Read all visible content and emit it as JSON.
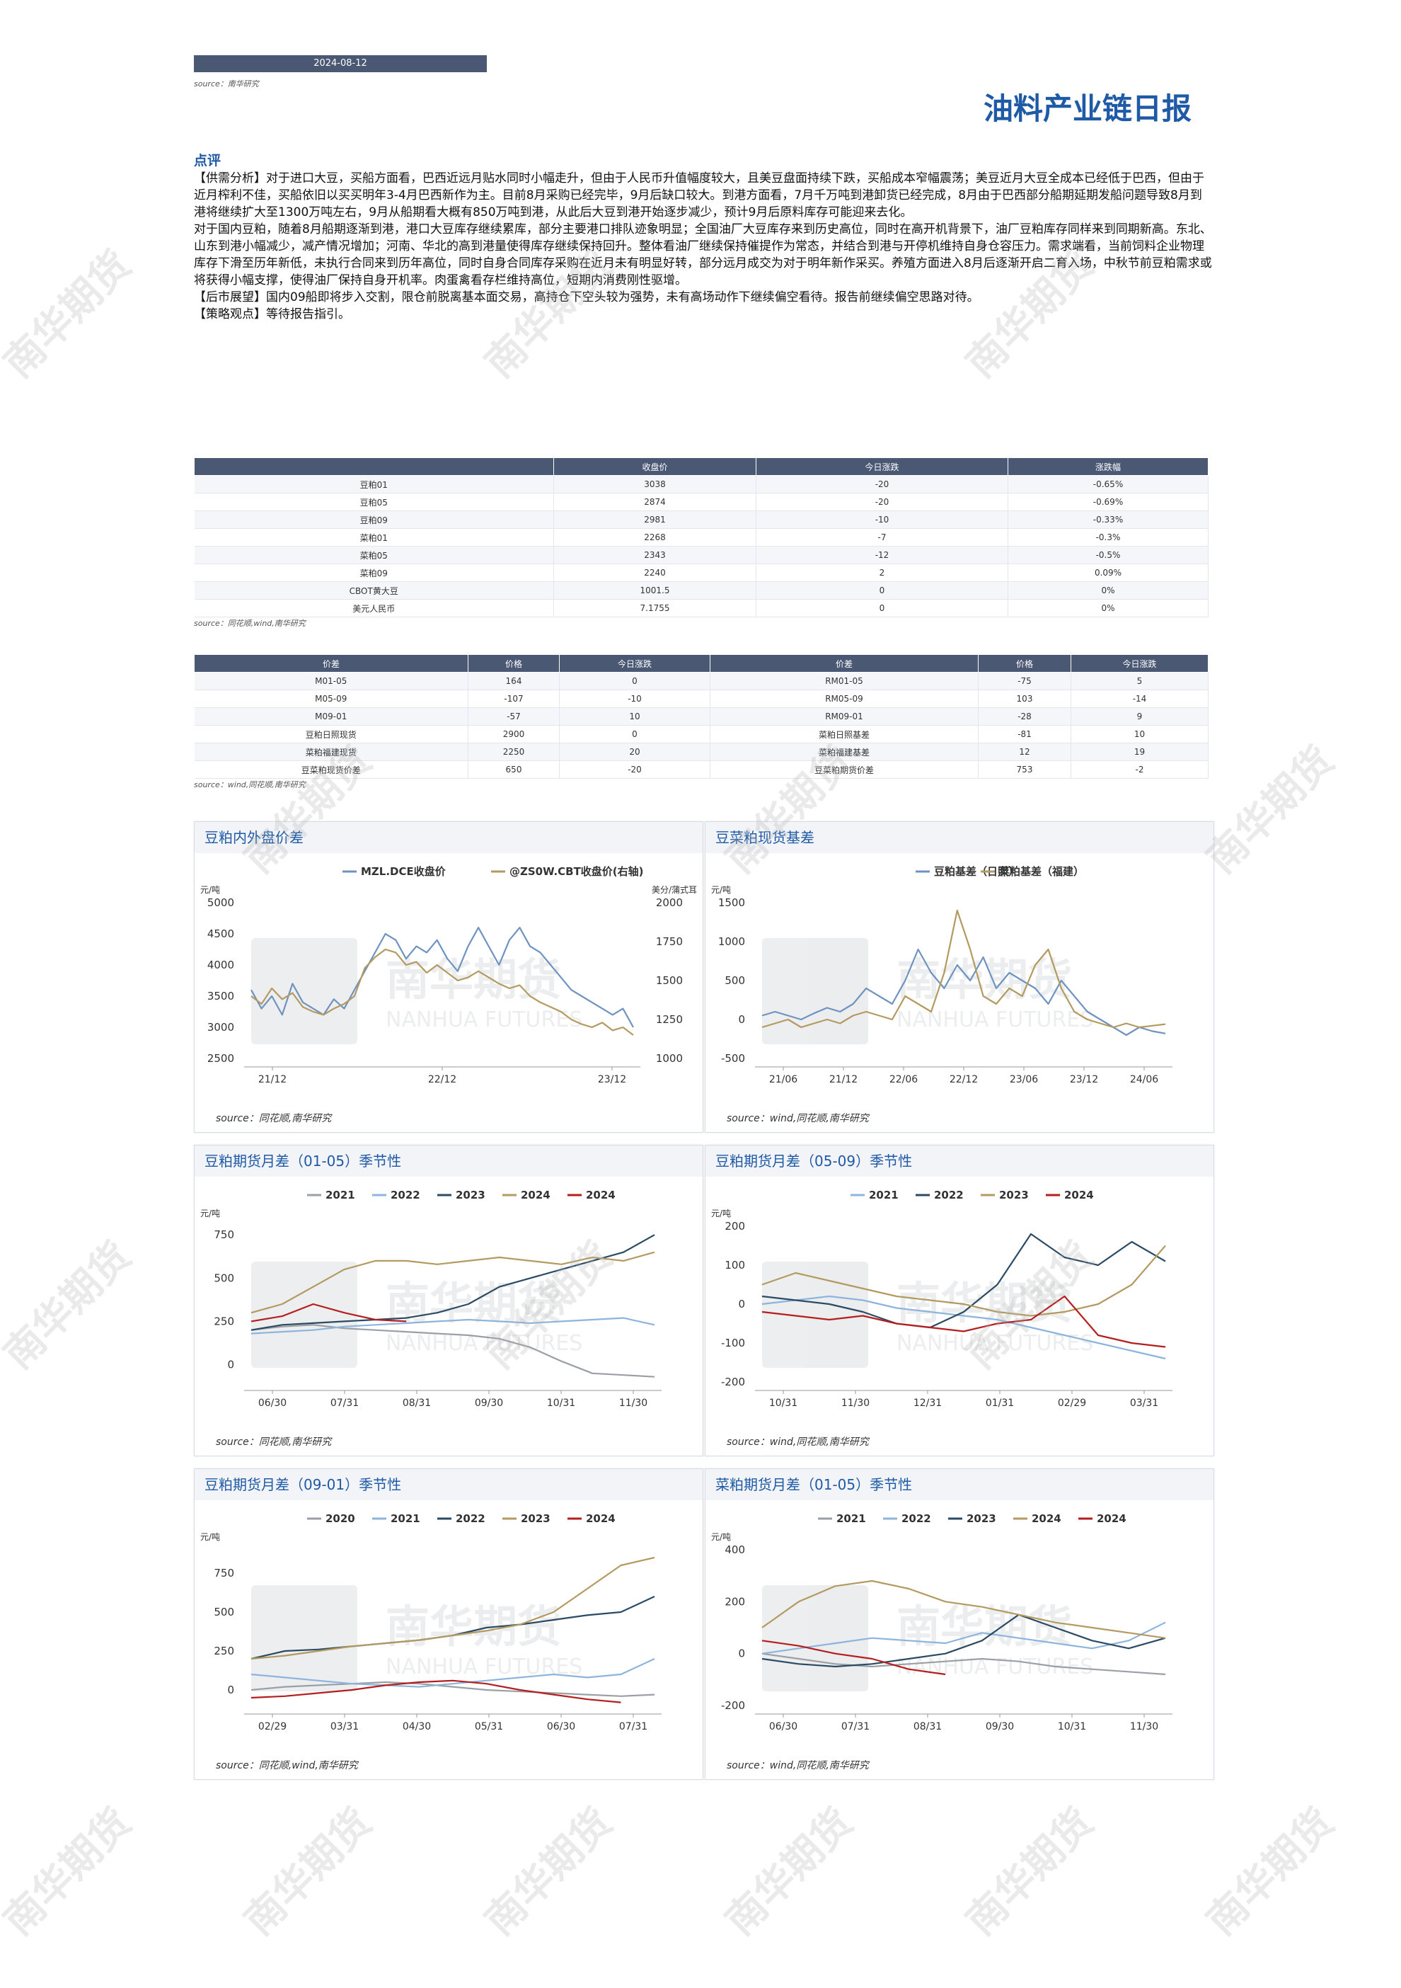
{
  "header": {
    "date": "2024-08-12",
    "source": "source：南华研究",
    "title": "油料产业链日报"
  },
  "commentary": {
    "heading": "点评",
    "paragraphs": [
      "【供需分析】对于进口大豆，买船方面看，巴西近远月贴水同时小幅走升，但由于人民币升值幅度较大，且美豆盘面持续下跌，买船成本窄幅震荡；美豆近月大豆全成本已经低于巴西，但由于近月榨利不佳，买船依旧以买买明年3-4月巴西新作为主。目前8月采购已经完毕，9月后缺口较大。到港方面看，7月千万吨到港卸货已经完成，8月由于巴西部分船期延期发船问题导致8月到港将继续扩大至1300万吨左右，9月从船期看大概有850万吨到港，从此后大豆到港开始逐步减少，预计9月后原料库存可能迎来去化。",
      "对于国内豆粕，随着8月船期逐渐到港，港口大豆库存继续累库，部分主要港口排队迹象明显；全国油厂大豆库存来到历史高位，同时在高开机背景下，油厂豆粕库存同样来到同期新高。东北、山东到港小幅减少，减产情况增加；河南、华北的高到港量使得库存继续保持回升。整体看油厂继续保持催提作为常态，并结合到港与开停机维持自身仓容压力。需求端看，当前饲料企业物理库存下滑至历年新低，未执行合同来到历年高位，同时自身合同库存采购在近月未有明显好转，部分远月成交为对于明年新作采买。养殖方面进入8月后逐渐开启二育入场，中秋节前豆粕需求或将获得小幅支撑，使得油厂保持自身开机率。肉蛋禽看存栏维持高位，短期内消费刚性驱增。",
      "【后市展望】国内09船即将步入交割，限仓前脱离基本面交易，高持仓下空头较为强势，未有高场动作下继续偏空看待。报告前继续偏空思路对待。",
      "【策略观点】等待报告指引。"
    ]
  },
  "table1": {
    "headers": [
      "",
      "收盘价",
      "今日涨跌",
      "涨跌幅"
    ],
    "rows": [
      [
        "豆粕01",
        "3038",
        "-20",
        "-0.65%"
      ],
      [
        "豆粕05",
        "2874",
        "-20",
        "-0.69%"
      ],
      [
        "豆粕09",
        "2981",
        "-10",
        "-0.33%"
      ],
      [
        "菜粕01",
        "2268",
        "-7",
        "-0.3%"
      ],
      [
        "菜粕05",
        "2343",
        "-12",
        "-0.5%"
      ],
      [
        "菜粕09",
        "2240",
        "2",
        "0.09%"
      ],
      [
        "CBOT黄大豆",
        "1001.5",
        "0",
        "0%"
      ],
      [
        "美元人民币",
        "7.1755",
        "0",
        "0%"
      ]
    ],
    "source": "source：同花顺,wind,南华研究"
  },
  "table2": {
    "headers": [
      "价差",
      "价格",
      "今日涨跌",
      "价差",
      "价格",
      "今日涨跌"
    ],
    "rows": [
      [
        "M01-05",
        "164",
        "0",
        "RM01-05",
        "-75",
        "5"
      ],
      [
        "M05-09",
        "-107",
        "-10",
        "RM05-09",
        "103",
        "-14"
      ],
      [
        "M09-01",
        "-57",
        "10",
        "RM09-01",
        "-28",
        "9"
      ],
      [
        "豆粕日照现货",
        "2900",
        "0",
        "菜粕日照基差",
        "-81",
        "10"
      ],
      [
        "菜粕福建现货",
        "2250",
        "20",
        "菜粕福建基差",
        "12",
        "19"
      ],
      [
        "豆菜粕现货价差",
        "650",
        "-20",
        "豆菜粕期货价差",
        "753",
        "-2"
      ]
    ],
    "source": "source：wind,同花顺,南华研究"
  },
  "watermark": {
    "text": "南华期货",
    "logo_cn": "南华期货",
    "logo_en": "NANHUA FUTURES"
  },
  "colors": {
    "blue_gray": "#6f93c0",
    "navy": "#2b4a63",
    "gold": "#b39a60",
    "red": "#b51e1e",
    "gray": "#9aa0a6",
    "light_blue": "#8db4dd"
  },
  "charts": [
    {
      "title": "豆粕内外盘价差",
      "source": "source：同花顺,南华研究",
      "chart_data": {
        "type": "line",
        "unit_left": "元/吨",
        "unit_right": "美分/蒲式耳",
        "left_ticks": [
          "5000",
          "4500",
          "4000",
          "3500",
          "3000",
          "2500"
        ],
        "right_ticks": [
          "2000",
          "1750",
          "1500",
          "1250",
          "1000"
        ],
        "x_ticks": [
          "21/12",
          "22/12",
          "23/12"
        ],
        "ylim": [
          2500,
          5000
        ],
        "ylim_right": [
          1000,
          2000
        ],
        "series": [
          {
            "name": "MZL.DCE收盘价",
            "color": "#6f93c0",
            "axis": "left",
            "values": [
              3600,
              3300,
              3500,
              3200,
              3700,
              3400,
              3300,
              3200,
              3450,
              3300,
              3600,
              3900,
              4200,
              4500,
              4400,
              4100,
              4300,
              4200,
              4400,
              4100,
              3900,
              4300,
              4600,
              4300,
              4000,
              4400,
              4600,
              4300,
              4200,
              4000,
              3800,
              3600,
              3500,
              3400,
              3300,
              3200,
              3300,
              3000
            ]
          },
          {
            "name": "@ZS0W.CBT收盘价(右轴)",
            "color": "#b39a60",
            "axis": "right",
            "values": [
              1400,
              1350,
              1450,
              1380,
              1420,
              1330,
              1300,
              1280,
              1320,
              1350,
              1400,
              1580,
              1650,
              1700,
              1680,
              1600,
              1620,
              1550,
              1600,
              1550,
              1500,
              1520,
              1560,
              1520,
              1480,
              1450,
              1470,
              1400,
              1360,
              1330,
              1300,
              1250,
              1220,
              1200,
              1230,
              1180,
              1200,
              1150
            ]
          }
        ]
      }
    },
    {
      "title": "豆菜粕现货基差",
      "source": "source：wind,同花顺,南华研究",
      "chart_data": {
        "type": "line",
        "unit_left": "元/吨",
        "left_ticks": [
          "1500",
          "1000",
          "500",
          "0",
          "-500"
        ],
        "x_ticks": [
          "21/06",
          "21/12",
          "22/06",
          "22/12",
          "23/06",
          "23/12",
          "24/06"
        ],
        "ylim": [
          -500,
          1500
        ],
        "series": [
          {
            "name": "豆粕基差（日照）",
            "color": "#6f93c0",
            "values": [
              50,
              100,
              50,
              0,
              80,
              150,
              100,
              200,
              400,
              300,
              200,
              500,
              900,
              600,
              400,
              700,
              500,
              800,
              400,
              600,
              500,
              400,
              200,
              500,
              300,
              100,
              0,
              -100,
              -200,
              -100,
              -150,
              -180
            ]
          },
          {
            "name": "菜粕基差（福建）",
            "color": "#b39a60",
            "values": [
              -100,
              -50,
              0,
              -100,
              -50,
              0,
              -50,
              50,
              100,
              50,
              0,
              300,
              200,
              100,
              600,
              1400,
              900,
              300,
              200,
              400,
              300,
              700,
              900,
              400,
              100,
              0,
              -50,
              -100,
              -50,
              -100,
              -80,
              -60
            ]
          }
        ]
      }
    },
    {
      "title": "豆粕期货月差（01-05）季节性",
      "source": "source：同花顺,南华研究",
      "chart_data": {
        "type": "line",
        "unit_left": "元/吨",
        "left_ticks": [
          "750",
          "500",
          "250",
          "0"
        ],
        "x_ticks": [
          "06/30",
          "07/31",
          "08/31",
          "09/30",
          "10/31",
          "11/30"
        ],
        "ylim": [
          -100,
          800
        ],
        "series": [
          {
            "name": "2021",
            "color": "#9aa0a6",
            "values": [
              200,
              220,
              230,
              210,
              200,
              190,
              180,
              170,
              150,
              100,
              20,
              -50,
              -60,
              -70
            ]
          },
          {
            "name": "2022",
            "color": "#8db4dd",
            "values": [
              180,
              190,
              200,
              220,
              230,
              240,
              250,
              260,
              250,
              240,
              250,
              260,
              270,
              230
            ]
          },
          {
            "name": "2023",
            "color": "#2b4a63",
            "values": [
              200,
              230,
              240,
              250,
              260,
              270,
              300,
              350,
              450,
              500,
              550,
              600,
              650,
              750
            ]
          },
          {
            "name": "2024",
            "color": "#b39a60",
            "values": [
              300,
              350,
              450,
              550,
              600,
              600,
              580,
              600,
              620,
              600,
              580,
              620,
              600,
              650
            ]
          },
          {
            "name": "2024",
            "color": "#b51e1e",
            "values": [
              250,
              280,
              350,
              300,
              260,
              250
            ]
          }
        ]
      }
    },
    {
      "title": "豆粕期货月差（05-09）季节性",
      "source": "source：wind,同花顺,南华研究",
      "chart_data": {
        "type": "line",
        "unit_left": "元/吨",
        "left_ticks": [
          "200",
          "100",
          "0",
          "-100",
          "-200"
        ],
        "x_ticks": [
          "10/31",
          "11/30",
          "12/31",
          "01/31",
          "02/29",
          "03/31"
        ],
        "ylim": [
          -200,
          200
        ],
        "series": [
          {
            "name": "2021",
            "color": "#8db4dd",
            "values": [
              0,
              10,
              20,
              10,
              -10,
              -20,
              -30,
              -40,
              -60,
              -80,
              -100,
              -120,
              -140
            ]
          },
          {
            "name": "2022",
            "color": "#2b4a63",
            "values": [
              20,
              10,
              0,
              -20,
              -50,
              -60,
              -20,
              50,
              180,
              120,
              100,
              160,
              110
            ]
          },
          {
            "name": "2023",
            "color": "#b39a60",
            "values": [
              50,
              80,
              60,
              40,
              20,
              10,
              0,
              -20,
              -30,
              -20,
              0,
              50,
              150
            ]
          },
          {
            "name": "2024",
            "color": "#b51e1e",
            "values": [
              -20,
              -30,
              -40,
              -30,
              -50,
              -60,
              -70,
              -50,
              -40,
              20,
              -80,
              -100,
              -110
            ]
          }
        ]
      }
    },
    {
      "title": "豆粕期货月差（09-01）季节性",
      "source": "source：同花顺,wind,南华研究",
      "chart_data": {
        "type": "line",
        "unit_left": "元/吨",
        "left_ticks": [
          "750",
          "500",
          "250",
          "0"
        ],
        "x_ticks": [
          "02/29",
          "03/31",
          "04/30",
          "05/31",
          "06/30",
          "07/31"
        ],
        "ylim": [
          -100,
          900
        ],
        "series": [
          {
            "name": "2020",
            "color": "#9aa0a6",
            "values": [
              0,
              20,
              30,
              40,
              50,
              40,
              20,
              0,
              -10,
              -20,
              -30,
              -40,
              -30
            ]
          },
          {
            "name": "2021",
            "color": "#8db4dd",
            "values": [
              100,
              80,
              60,
              40,
              30,
              20,
              40,
              60,
              80,
              100,
              80,
              100,
              200
            ]
          },
          {
            "name": "2022",
            "color": "#2b4a63",
            "values": [
              200,
              250,
              260,
              280,
              300,
              320,
              350,
              400,
              420,
              450,
              480,
              500,
              600
            ]
          },
          {
            "name": "2023",
            "color": "#b39a60",
            "values": [
              200,
              220,
              250,
              280,
              300,
              320,
              350,
              380,
              420,
              500,
              650,
              800,
              850
            ]
          },
          {
            "name": "2024",
            "color": "#b51e1e",
            "values": [
              -50,
              -40,
              -20,
              0,
              30,
              50,
              60,
              40,
              0,
              -30,
              -60,
              -80
            ]
          }
        ]
      }
    },
    {
      "title": "菜粕期货月差（01-05）季节性",
      "source": "source：wind,同花顺,南华研究",
      "chart_data": {
        "type": "line",
        "unit_left": "元/吨",
        "left_ticks": [
          "400",
          "200",
          "0",
          "-200"
        ],
        "x_ticks": [
          "06/30",
          "07/31",
          "08/31",
          "09/30",
          "10/31",
          "11/30"
        ],
        "ylim": [
          -200,
          400
        ],
        "series": [
          {
            "name": "2021",
            "color": "#9aa0a6",
            "values": [
              0,
              -20,
              -40,
              -50,
              -40,
              -30,
              -20,
              -30,
              -50,
              -60,
              -70,
              -80
            ]
          },
          {
            "name": "2022",
            "color": "#8db4dd",
            "values": [
              0,
              20,
              40,
              60,
              50,
              40,
              80,
              60,
              40,
              20,
              50,
              120
            ]
          },
          {
            "name": "2023",
            "color": "#2b4a63",
            "values": [
              -20,
              -40,
              -50,
              -40,
              -20,
              0,
              50,
              150,
              100,
              50,
              20,
              60
            ]
          },
          {
            "name": "2024",
            "color": "#b39a60",
            "values": [
              100,
              200,
              260,
              280,
              250,
              200,
              180,
              150,
              120,
              100,
              80,
              60
            ]
          },
          {
            "name": "2024",
            "color": "#b51e1e",
            "values": [
              50,
              30,
              0,
              -20,
              -60,
              -80
            ]
          }
        ]
      }
    }
  ]
}
